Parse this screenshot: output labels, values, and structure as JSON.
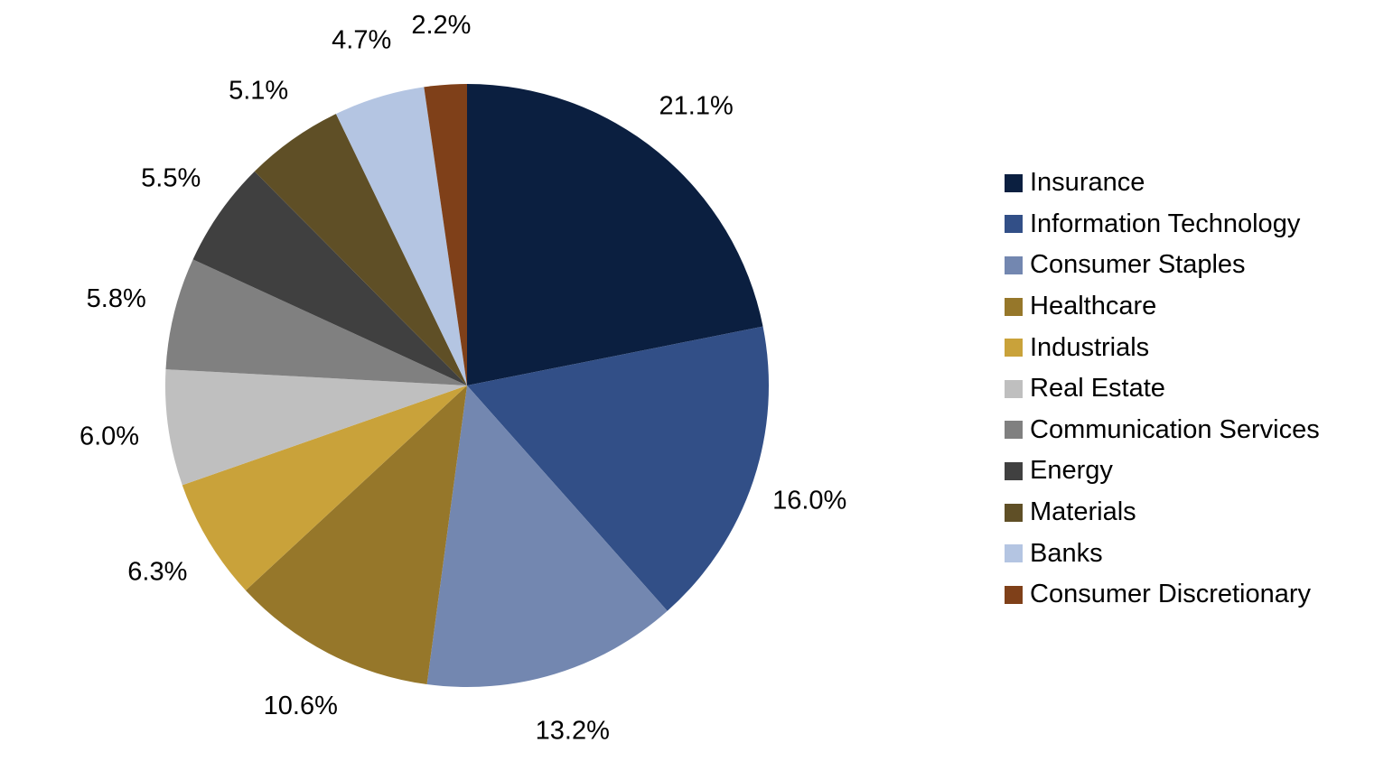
{
  "chart_data": {
    "type": "pie",
    "title": "",
    "categories": [
      "Insurance",
      "Information Technology",
      "Consumer Staples",
      "Healthcare",
      "Industrials",
      "Real Estate",
      "Communication Services",
      "Energy",
      "Materials",
      "Banks",
      "Consumer Discretionary"
    ],
    "values": [
      21.1,
      16.0,
      13.2,
      10.6,
      6.3,
      6.0,
      5.8,
      5.5,
      5.1,
      4.7,
      2.2
    ],
    "data_labels": [
      "21.1%",
      "16.0%",
      "13.2%",
      "10.6%",
      "6.3%",
      "6.0%",
      "5.8%",
      "5.5%",
      "5.1%",
      "4.7%",
      "2.2%"
    ],
    "colors": [
      "#0b1f40",
      "#324f87",
      "#7387b0",
      "#96772a",
      "#c9a23a",
      "#bfbfbf",
      "#808080",
      "#404040",
      "#5f4f26",
      "#b4c5e2",
      "#7f4019"
    ],
    "start_angle": "12 o'clock",
    "direction": "clockwise",
    "legend_position": "right"
  }
}
